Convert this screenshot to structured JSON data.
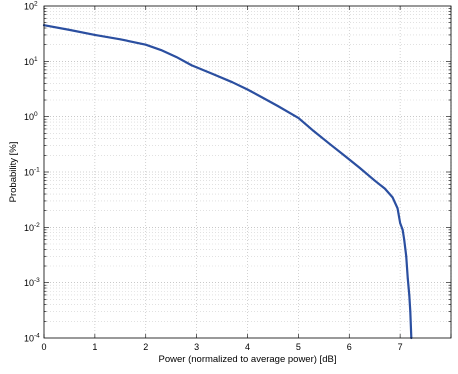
{
  "chart_data": {
    "type": "line",
    "title": "",
    "xlabel": "Power (normalized to average power) [dB]",
    "ylabel": "Probability [%]",
    "xlim": [
      0,
      8
    ],
    "ylim": [
      0.0001,
      100
    ],
    "yscale": "log",
    "grid": true,
    "xticks": [
      "0",
      "1",
      "2",
      "3",
      "4",
      "5",
      "6",
      "7"
    ],
    "yticks": [
      {
        "base": "10",
        "exp": "2"
      },
      {
        "base": "10",
        "exp": "1"
      },
      {
        "base": "10",
        "exp": "0"
      },
      {
        "base": "10",
        "exp": "-1"
      },
      {
        "base": "10",
        "exp": "-2"
      },
      {
        "base": "10",
        "exp": "-3"
      },
      {
        "base": "10",
        "exp": "-4"
      }
    ],
    "series": [
      {
        "color": "#2b4fa0",
        "x": [
          0,
          0.5,
          1.0,
          1.5,
          2.0,
          2.3,
          2.6,
          2.9,
          3.3,
          3.7,
          4.0,
          4.3,
          4.6,
          5.0,
          5.3,
          5.6,
          5.9,
          6.2,
          6.5,
          6.7,
          6.85,
          6.95,
          7.0,
          7.05,
          7.08,
          7.12,
          7.15,
          7.18,
          7.2,
          7.22
        ],
        "y": [
          45,
          37,
          30,
          25,
          20,
          16,
          12,
          8.5,
          6,
          4.2,
          3.1,
          2.2,
          1.55,
          0.95,
          0.55,
          0.33,
          0.2,
          0.12,
          0.07,
          0.05,
          0.035,
          0.022,
          0.012,
          0.009,
          0.006,
          0.003,
          0.0012,
          0.0006,
          0.0003,
          0.0001
        ]
      }
    ]
  }
}
